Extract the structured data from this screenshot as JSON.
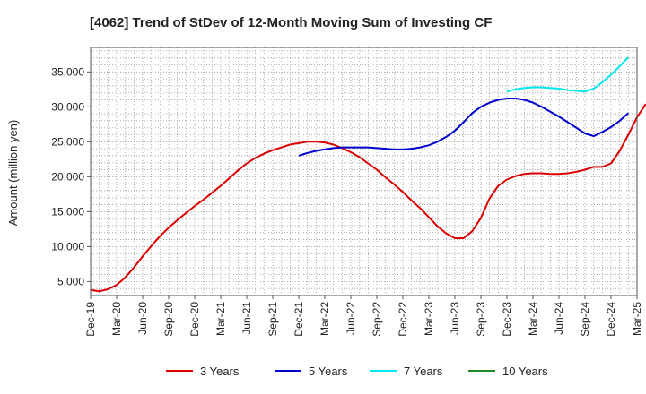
{
  "chart_data": {
    "type": "line",
    "title": "[4062]  Trend of StDev of 12-Month Moving Sum of Investing CF",
    "xlabel": "",
    "ylabel": "Amount (million yen)",
    "x_tick_labels": [
      "Dec-19",
      "Mar-20",
      "Jun-20",
      "Sep-20",
      "Dec-20",
      "Mar-21",
      "Jun-21",
      "Sep-21",
      "Dec-21",
      "Mar-22",
      "Jun-22",
      "Sep-22",
      "Dec-22",
      "Mar-23",
      "Jun-23",
      "Sep-23",
      "Dec-23",
      "Mar-24",
      "Jun-24",
      "Sep-24",
      "Dec-24",
      "Mar-25"
    ],
    "y_ticks": [
      5000,
      10000,
      15000,
      20000,
      25000,
      30000,
      35000
    ],
    "y_tick_labels": [
      "5,000",
      "10,000",
      "15,000",
      "20,000",
      "25,000",
      "30,000",
      "35,000"
    ],
    "ylim": [
      3000,
      38500
    ],
    "grid": true,
    "legend_position": "bottom",
    "series": [
      {
        "name": "3 Years",
        "color": "#dd0000",
        "start": "Dec-19",
        "values": [
          3800,
          3600,
          3900,
          4500,
          5600,
          7000,
          8600,
          10100,
          11500,
          12700,
          13800,
          14800,
          15800,
          16700,
          17700,
          18700,
          19800,
          20900,
          21900,
          22700,
          23300,
          23800,
          24200,
          24600,
          24800,
          25000,
          25000,
          24900,
          24600,
          24100,
          23500,
          22800,
          21900,
          21000,
          19900,
          18900,
          17800,
          16600,
          15500,
          14200,
          12900,
          11900,
          11200,
          11200,
          12200,
          14100,
          16900,
          18700,
          19600,
          20100,
          20400,
          20500,
          20500,
          20400,
          20400,
          20500,
          20700,
          21000,
          21400,
          21400,
          21900,
          23700,
          26000,
          28500,
          30400
        ]
      },
      {
        "name": "5 Years",
        "color": "#0000cc",
        "start": "Dec-21",
        "values": [
          23000,
          23400,
          23700,
          23900,
          24100,
          24200,
          24200,
          24200,
          24200,
          24100,
          24000,
          23900,
          23900,
          24000,
          24200,
          24500,
          25000,
          25700,
          26600,
          27800,
          29100,
          30000,
          30600,
          31000,
          31200,
          31200,
          31000,
          30600,
          30000,
          29300,
          28600,
          27800,
          27000,
          26200,
          25800,
          26400,
          27100,
          28000,
          29100
        ]
      },
      {
        "name": "7 Years",
        "color": "#00e5ee",
        "start": "Dec-23",
        "values": [
          32200,
          32500,
          32700,
          32800,
          32800,
          32700,
          32600,
          32400,
          32300,
          32200,
          32600,
          33500,
          34600,
          35800,
          37100
        ]
      },
      {
        "name": "10 Years",
        "color": "#228b22",
        "start": "Dec-19",
        "values": []
      }
    ]
  }
}
